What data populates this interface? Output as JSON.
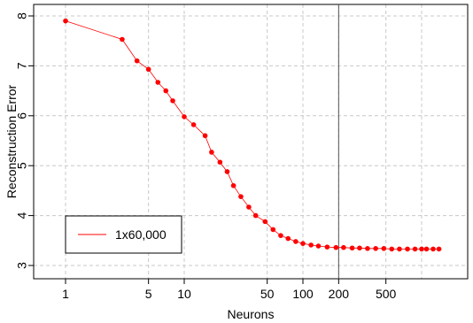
{
  "chart_data": {
    "type": "line",
    "title": "",
    "xlabel": "Neurons",
    "ylabel": "Reconstruction Error",
    "x_scale": "log",
    "xlim": [
      1,
      1100
    ],
    "ylim": [
      2.9,
      8.15
    ],
    "x_ticks": [
      1,
      5,
      10,
      50,
      100,
      200,
      500
    ],
    "y_ticks": [
      3,
      4,
      5,
      6,
      7,
      8
    ],
    "x_gridlines": [
      1,
      5,
      10,
      50,
      100,
      200,
      500,
      1000
    ],
    "y_gridlines": [
      3,
      4,
      5,
      6,
      7,
      8
    ],
    "grid": true,
    "vertical_line": 200,
    "legend_position": "bottom-left",
    "colors": {
      "series": "#ff0000",
      "grid": "#c8c8c8",
      "axis": "#000000",
      "vline": "#555555"
    },
    "series": [
      {
        "name": "1x60,000",
        "x": [
          1,
          3,
          4,
          5,
          6,
          7,
          8,
          10,
          12,
          15,
          17,
          20,
          23,
          26,
          30,
          35,
          40,
          48,
          56,
          65,
          75,
          87,
          100,
          117,
          135,
          160,
          190,
          220,
          260,
          300,
          350,
          410,
          480,
          560,
          650,
          760,
          880,
          1000,
          1100,
          1250,
          1400
        ],
        "y": [
          7.9,
          7.53,
          7.1,
          6.93,
          6.67,
          6.5,
          6.3,
          5.98,
          5.82,
          5.6,
          5.27,
          5.07,
          4.88,
          4.6,
          4.38,
          4.17,
          4.0,
          3.88,
          3.72,
          3.6,
          3.54,
          3.48,
          3.44,
          3.41,
          3.39,
          3.37,
          3.36,
          3.36,
          3.35,
          3.35,
          3.34,
          3.34,
          3.34,
          3.33,
          3.33,
          3.33,
          3.33,
          3.33,
          3.33,
          3.33,
          3.33
        ]
      }
    ]
  }
}
